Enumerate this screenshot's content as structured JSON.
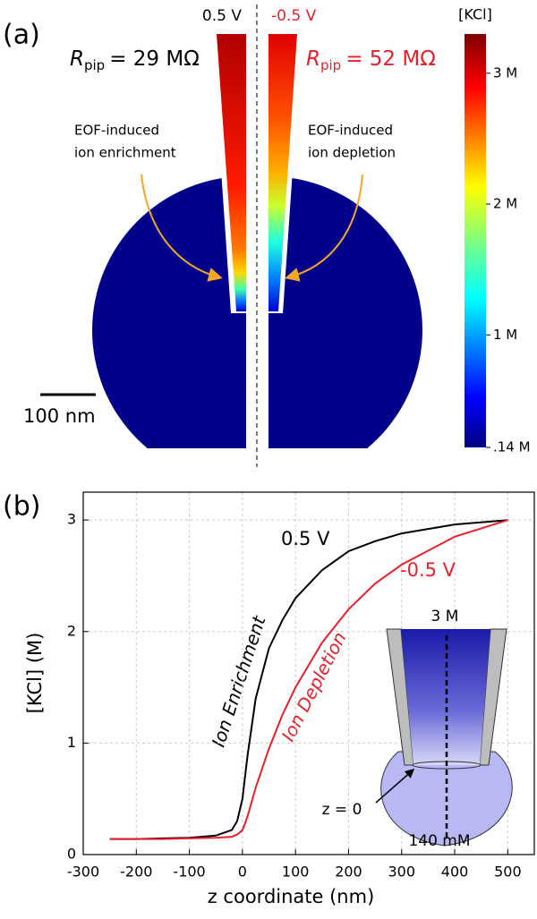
{
  "panel_a": {
    "label": "(a)",
    "left": {
      "voltage": "0.5 V",
      "resistance": {
        "symbol": "R",
        "subscript": "pip",
        "value": "= 29 MΩ"
      },
      "annotation": [
        "EOF-induced",
        "ion enrichment"
      ]
    },
    "right": {
      "voltage": "-0.5 V",
      "resistance": {
        "symbol": "R",
        "subscript": "pip",
        "value": "= 52 MΩ"
      },
      "annotation": [
        "EOF-induced",
        "ion depletion"
      ]
    },
    "scale_bar": "100 nm",
    "colorbar": {
      "label": "[KCl]",
      "lim": [
        0.14,
        3.3
      ],
      "ticks": [
        {
          "value": 3,
          "label": "3 M"
        },
        {
          "value": 2,
          "label": "2 M"
        },
        {
          "value": 1,
          "label": "1 M"
        },
        {
          "value": 0.14,
          "label": ".14 M"
        }
      ]
    }
  },
  "chart_data": {
    "type": "line",
    "label": "(b)",
    "xlabel": "z coordinate (nm)",
    "ylabel": "[KCl] (M)",
    "x": [
      -250,
      -200,
      -150,
      -100,
      -50,
      -20,
      -10,
      0,
      5,
      10,
      25,
      50,
      75,
      100,
      150,
      200,
      250,
      300,
      400,
      500
    ],
    "series": [
      {
        "name": "0.5 V",
        "color": "#000000",
        "values": [
          0.14,
          0.14,
          0.145,
          0.15,
          0.17,
          0.22,
          0.3,
          0.5,
          0.7,
          0.9,
          1.4,
          1.85,
          2.1,
          2.3,
          2.55,
          2.72,
          2.81,
          2.88,
          2.96,
          3.0
        ]
      },
      {
        "name": "-0.5 V",
        "color": "#e8202a",
        "values": [
          0.14,
          0.14,
          0.14,
          0.145,
          0.15,
          0.16,
          0.18,
          0.22,
          0.28,
          0.35,
          0.6,
          0.95,
          1.25,
          1.5,
          1.9,
          2.2,
          2.43,
          2.6,
          2.85,
          3.0
        ]
      }
    ],
    "xlim": [
      -300,
      550
    ],
    "ylim": [
      0,
      3.25
    ],
    "xticks": [
      -300,
      -200,
      -100,
      0,
      100,
      200,
      300,
      400,
      500
    ],
    "yticks": [
      0,
      1,
      2,
      3
    ],
    "grid": true,
    "annotations": [
      "Ion Enrichment",
      "Ion Depletion"
    ],
    "inset": {
      "top": "3 M",
      "origin": "z = 0",
      "bottom": "140 mM"
    }
  }
}
